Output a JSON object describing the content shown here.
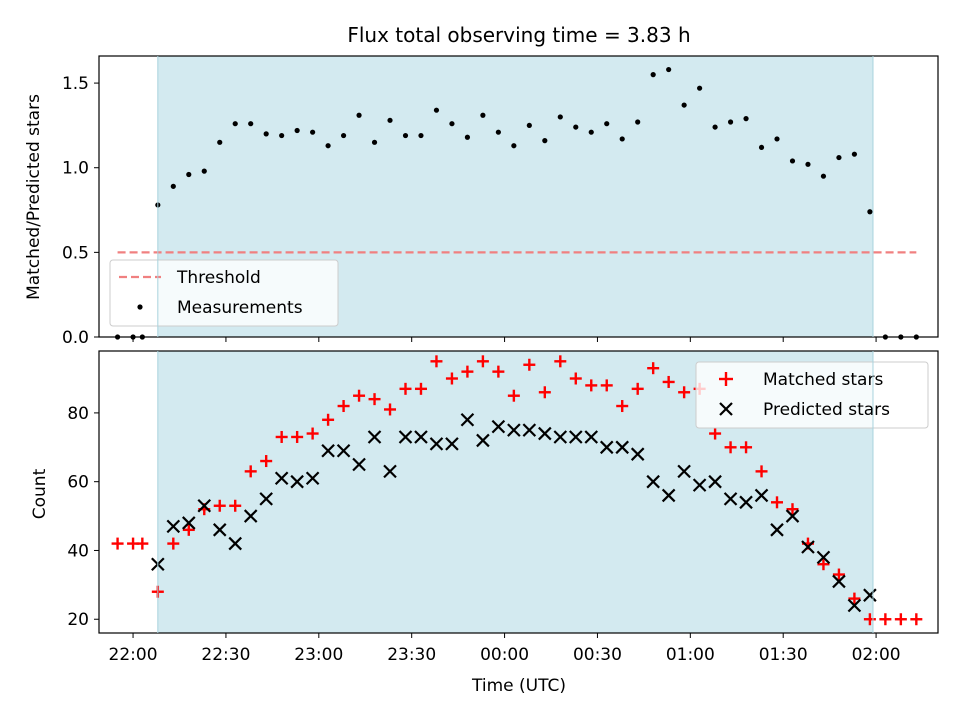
{
  "chart_data": [
    {
      "type": "scatter",
      "title": "Flux total observing time = 3.83 h",
      "ylabel": "Matched/Predicted stars",
      "ylim": [
        0,
        1.66
      ],
      "x_range": [
        "21:49",
        "02:20"
      ],
      "yticks": [
        0.0,
        0.5,
        1.0,
        1.5
      ],
      "ytick_labels": [
        "0.0",
        "0.5",
        "1.0",
        "1.5"
      ],
      "shaded_interval": [
        "22:08",
        "01:59"
      ],
      "shade_color": "#d3eaf0",
      "legend_position": "lower-left",
      "threshold": {
        "name": "Threshold",
        "value": 0.5,
        "x_start": "21:55",
        "x_end": "02:13",
        "color": "#f08080"
      },
      "series": [
        {
          "name": "Measurements",
          "color": "#000000",
          "x": [
            "21:55",
            "22:00",
            "22:03",
            "22:08",
            "22:13",
            "22:18",
            "22:23",
            "22:28",
            "22:33",
            "22:38",
            "22:43",
            "22:48",
            "22:53",
            "22:58",
            "23:03",
            "23:08",
            "23:13",
            "23:18",
            "23:23",
            "23:28",
            "23:33",
            "23:38",
            "23:43",
            "23:48",
            "23:53",
            "23:58",
            "00:03",
            "00:08",
            "00:13",
            "00:18",
            "00:23",
            "00:28",
            "00:33",
            "00:38",
            "00:43",
            "00:48",
            "00:53",
            "00:58",
            "01:03",
            "01:08",
            "01:13",
            "01:18",
            "01:23",
            "01:28",
            "01:33",
            "01:38",
            "01:43",
            "01:48",
            "01:53",
            "01:58",
            "02:03",
            "02:08",
            "02:13"
          ],
          "y": [
            0.0,
            0.0,
            0.0,
            0.78,
            0.89,
            0.96,
            0.98,
            1.15,
            1.26,
            1.26,
            1.2,
            1.19,
            1.22,
            1.21,
            1.13,
            1.19,
            1.31,
            1.15,
            1.28,
            1.19,
            1.19,
            1.34,
            1.26,
            1.18,
            1.31,
            1.21,
            1.13,
            1.25,
            1.16,
            1.3,
            1.24,
            1.21,
            1.26,
            1.17,
            1.27,
            1.55,
            1.58,
            1.37,
            1.47,
            1.24,
            1.27,
            1.29,
            1.12,
            1.17,
            1.04,
            1.02,
            0.95,
            1.06,
            1.08,
            0.74,
            0.0,
            0.0,
            0.0
          ]
        }
      ]
    },
    {
      "type": "scatter",
      "xlabel": "Time (UTC)",
      "ylabel": "Count",
      "ylim": [
        16,
        98
      ],
      "x_range": [
        "21:49",
        "02:20"
      ],
      "xtick_labels": [
        "22:00",
        "22:30",
        "23:00",
        "23:30",
        "00:00",
        "00:30",
        "01:00",
        "01:30",
        "02:00"
      ],
      "yticks": [
        20,
        40,
        60,
        80
      ],
      "ytick_labels": [
        "20",
        "40",
        "60",
        "80"
      ],
      "shaded_interval": [
        "22:08",
        "01:59"
      ],
      "shade_color": "#d3eaf0",
      "legend_position": "top-right",
      "series": [
        {
          "name": "Matched stars",
          "color": "#ff0000",
          "marker": "plus",
          "x": [
            "21:55",
            "22:00",
            "22:03",
            "22:08",
            "22:13",
            "22:18",
            "22:23",
            "22:28",
            "22:33",
            "22:38",
            "22:43",
            "22:48",
            "22:53",
            "22:58",
            "23:03",
            "23:08",
            "23:13",
            "23:18",
            "23:23",
            "23:28",
            "23:33",
            "23:38",
            "23:43",
            "23:48",
            "23:53",
            "23:58",
            "00:03",
            "00:08",
            "00:13",
            "00:18",
            "00:23",
            "00:28",
            "00:33",
            "00:38",
            "00:43",
            "00:48",
            "00:53",
            "00:58",
            "01:03",
            "01:08",
            "01:13",
            "01:18",
            "01:23",
            "01:28",
            "01:33",
            "01:38",
            "01:43",
            "01:48",
            "01:53",
            "01:58",
            "02:03",
            "02:08",
            "02:13"
          ],
          "y": [
            42,
            42,
            42,
            28,
            42,
            46,
            52,
            53,
            53,
            63,
            66,
            73,
            73,
            74,
            78,
            82,
            85,
            84,
            81,
            87,
            87,
            95,
            90,
            92,
            95,
            92,
            85,
            94,
            86,
            95,
            90,
            88,
            88,
            82,
            87,
            93,
            89,
            86,
            87,
            74,
            70,
            70,
            63,
            54,
            52,
            42,
            36,
            33,
            26,
            20,
            20,
            20,
            20
          ]
        },
        {
          "name": "Predicted stars",
          "color": "#000000",
          "marker": "x",
          "x": [
            "22:08",
            "22:13",
            "22:18",
            "22:23",
            "22:28",
            "22:33",
            "22:38",
            "22:43",
            "22:48",
            "22:53",
            "22:58",
            "23:03",
            "23:08",
            "23:13",
            "23:18",
            "23:23",
            "23:28",
            "23:33",
            "23:38",
            "23:43",
            "23:48",
            "23:53",
            "23:58",
            "00:03",
            "00:08",
            "00:13",
            "00:18",
            "00:23",
            "00:28",
            "00:33",
            "00:38",
            "00:43",
            "00:48",
            "00:53",
            "00:58",
            "01:03",
            "01:08",
            "01:13",
            "01:18",
            "01:23",
            "01:28",
            "01:33",
            "01:38",
            "01:43",
            "01:48",
            "01:53",
            "01:58"
          ],
          "y": [
            36,
            47,
            48,
            53,
            46,
            42,
            50,
            55,
            61,
            60,
            61,
            69,
            69,
            65,
            73,
            63,
            73,
            73,
            71,
            71,
            78,
            72,
            76,
            75,
            75,
            74,
            73,
            73,
            73,
            70,
            70,
            68,
            60,
            56,
            63,
            59,
            60,
            55,
            54,
            56,
            46,
            50,
            41,
            38,
            31,
            24,
            27
          ]
        }
      ]
    }
  ]
}
